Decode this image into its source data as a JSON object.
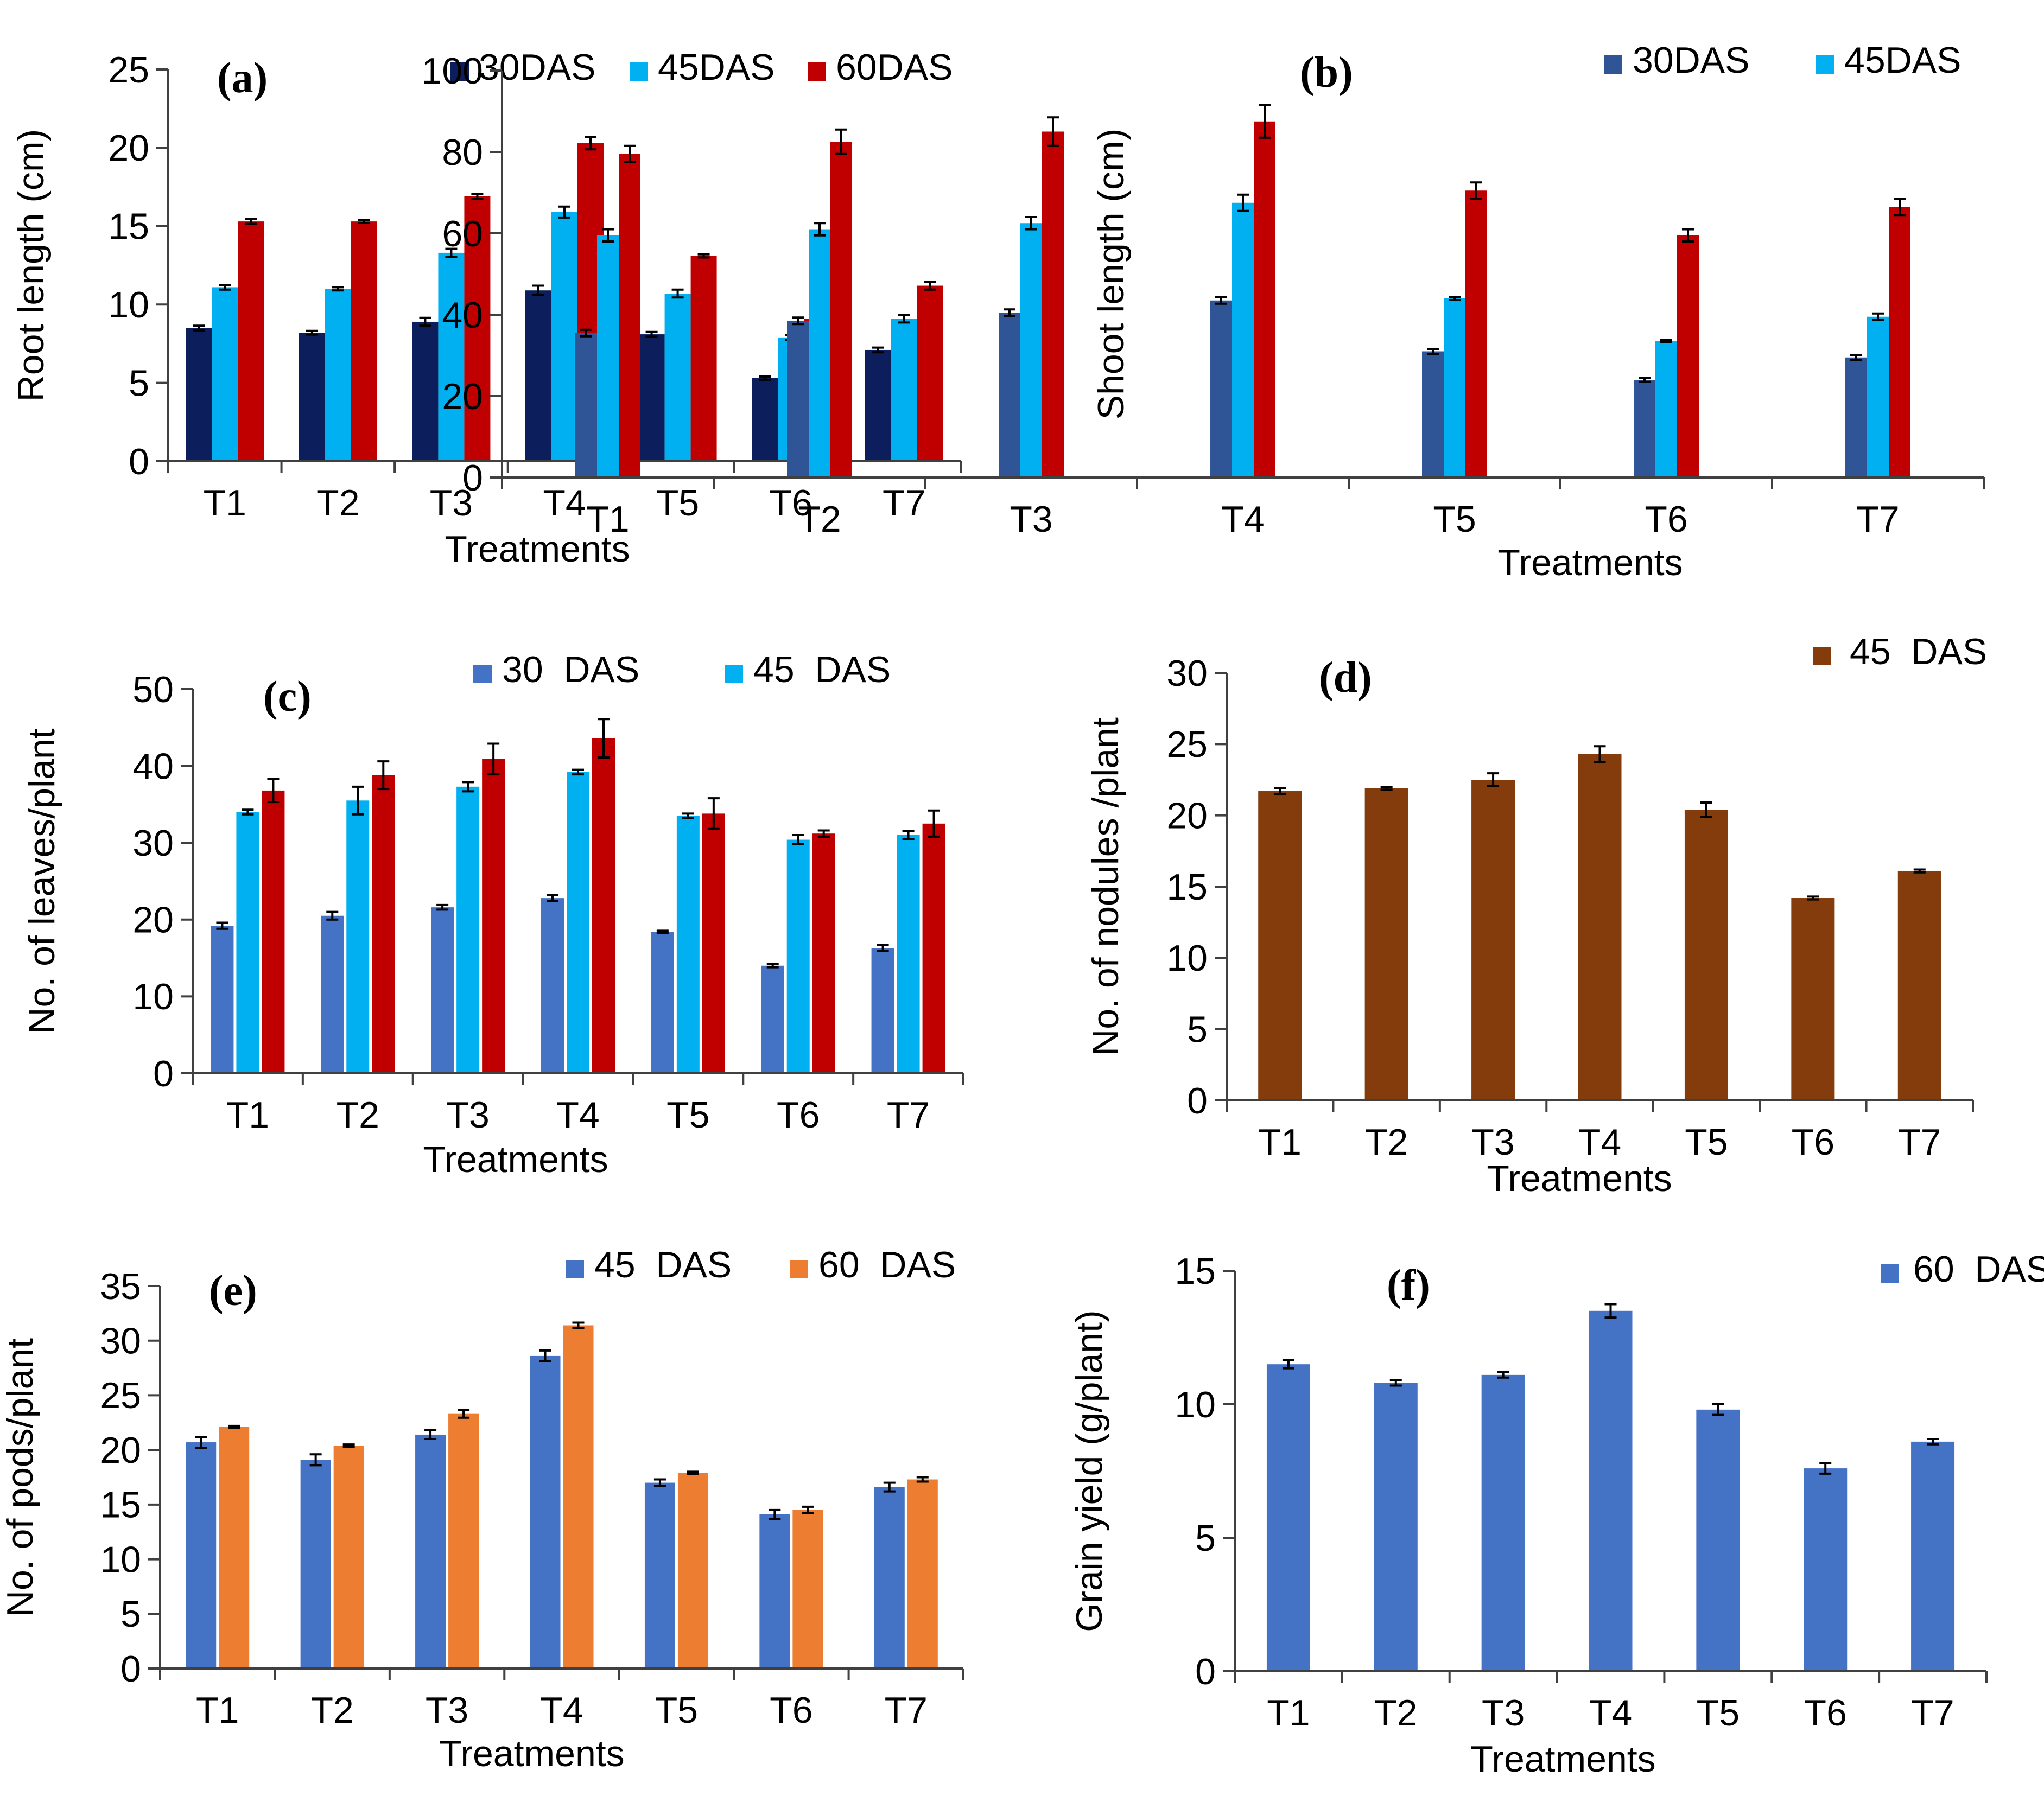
{
  "colors": {
    "c30a": "#0c1f5c",
    "c30b": "#2f5597",
    "c30c": "#4472c4",
    "c45": "#00b0f0",
    "c60": "#c00000",
    "brown": "#843c0c",
    "orange": "#ed7d31",
    "blue": "#4472c4"
  },
  "chart_data": [
    {
      "id": "a",
      "type": "bar",
      "panel_label": "(a)",
      "xlabel": "Treatments",
      "ylabel": "Root length (cm)",
      "ylim": [
        0,
        25
      ],
      "yticks": [
        0,
        5,
        10,
        15,
        20,
        25
      ],
      "categories": [
        "T1",
        "T2",
        "T3",
        "T4",
        "T5",
        "T6",
        "T7"
      ],
      "series": [
        {
          "name": "30DAS",
          "legend": "30DAS",
          "color": "#0c1f5c",
          "values": [
            8.5,
            8.2,
            8.9,
            10.9,
            8.1,
            5.3,
            7.1
          ],
          "errors": [
            0.15,
            0.12,
            0.25,
            0.3,
            0.15,
            0.1,
            0.15
          ]
        },
        {
          "name": "45DAS",
          "legend": "45DAS",
          "color": "#00b0f0",
          "values": [
            11.1,
            11.0,
            13.3,
            15.9,
            10.7,
            7.9,
            9.1
          ],
          "errors": [
            0.15,
            0.1,
            0.25,
            0.35,
            0.25,
            0.15,
            0.25
          ]
        },
        {
          "name": "60DAS",
          "legend": "60DAS",
          "color": "#c00000",
          "values": [
            15.3,
            15.3,
            16.9,
            20.3,
            13.1,
            9.1,
            11.2
          ],
          "errors": [
            0.15,
            0.1,
            0.15,
            0.4,
            0.1,
            0.25,
            0.25
          ]
        }
      ]
    },
    {
      "id": "b",
      "type": "bar",
      "panel_label": "(b)",
      "xlabel": "Treatments",
      "ylabel": "Shoot length (cm)",
      "ylim": [
        0,
        100
      ],
      "yticks": [
        0,
        20,
        40,
        60,
        80,
        100
      ],
      "categories": [
        "T1",
        "T2",
        "T3",
        "T4",
        "T5",
        "T6",
        "T7"
      ],
      "series": [
        {
          "name": "30DAS",
          "legend": "30DAS",
          "color": "#2f5597",
          "values": [
            35.5,
            38.5,
            40.5,
            43.5,
            31.0,
            24.0,
            29.5
          ],
          "errors": [
            0.8,
            0.8,
            0.8,
            0.8,
            0.6,
            0.5,
            0.6
          ]
        },
        {
          "name": "45DAS",
          "legend": "45DAS",
          "color": "#00b0f0",
          "values": [
            59.5,
            61.0,
            62.5,
            67.5,
            44.0,
            33.5,
            39.5
          ],
          "errors": [
            1.5,
            1.5,
            1.5,
            2.0,
            0.4,
            0.3,
            0.8
          ]
        },
        {
          "name": "60DAS",
          "legend": null,
          "color": "#c00000",
          "values": [
            79.5,
            82.5,
            85.0,
            87.5,
            70.5,
            59.5,
            66.5
          ],
          "errors": [
            2.0,
            3.0,
            3.5,
            4.0,
            2.0,
            1.5,
            2.0
          ]
        }
      ]
    },
    {
      "id": "c",
      "type": "bar",
      "panel_label": "(c)",
      "xlabel": "Treatments",
      "ylabel": "No. of leaves/plant",
      "ylim": [
        0,
        50
      ],
      "yticks": [
        0,
        10,
        20,
        30,
        40,
        50
      ],
      "categories": [
        "T1",
        "T2",
        "T3",
        "T4",
        "T5",
        "T6",
        "T7"
      ],
      "series": [
        {
          "name": "30 DAS",
          "legend": "30  DAS",
          "color": "#4472c4",
          "values": [
            19.2,
            20.5,
            21.6,
            22.8,
            18.4,
            14.0,
            16.3
          ],
          "errors": [
            0.4,
            0.5,
            0.3,
            0.4,
            0.15,
            0.2,
            0.4
          ]
        },
        {
          "name": "45 DAS",
          "legend": "45  DAS",
          "color": "#00b0f0",
          "values": [
            34.0,
            35.5,
            37.3,
            39.2,
            33.5,
            30.4,
            31.0
          ],
          "errors": [
            0.3,
            1.8,
            0.6,
            0.3,
            0.3,
            0.6,
            0.5
          ]
        },
        {
          "name": "60 DAS",
          "legend": null,
          "color": "#c00000",
          "values": [
            36.8,
            38.8,
            40.9,
            43.6,
            33.8,
            31.2,
            32.5
          ],
          "errors": [
            1.5,
            1.8,
            2.0,
            2.5,
            2.0,
            0.4,
            1.7
          ]
        }
      ]
    },
    {
      "id": "d",
      "type": "bar",
      "panel_label": "(d)",
      "xlabel": "Treatments",
      "ylabel": "No. of nodules /plant",
      "ylim": [
        0,
        30
      ],
      "yticks": [
        0,
        5,
        10,
        15,
        20,
        25,
        30
      ],
      "categories": [
        "T1",
        "T2",
        "T3",
        "T4",
        "T5",
        "T6",
        "T7"
      ],
      "series": [
        {
          "name": "45 DAS",
          "legend": "45  DAS",
          "color": "#843c0c",
          "values": [
            21.7,
            21.9,
            22.5,
            24.3,
            20.4,
            14.2,
            16.1
          ],
          "errors": [
            0.2,
            0.1,
            0.45,
            0.55,
            0.5,
            0.1,
            0.1
          ]
        }
      ]
    },
    {
      "id": "e",
      "type": "bar",
      "panel_label": "(e)",
      "xlabel": "Treatments",
      "ylabel": "No. of pods/plant",
      "ylim": [
        0,
        35
      ],
      "yticks": [
        0,
        5,
        10,
        15,
        20,
        25,
        30,
        35
      ],
      "categories": [
        "T1",
        "T2",
        "T3",
        "T4",
        "T5",
        "T6",
        "T7"
      ],
      "series": [
        {
          "name": "45 DAS",
          "legend": "45  DAS",
          "color": "#4472c4",
          "values": [
            20.7,
            19.1,
            21.4,
            28.6,
            17.0,
            14.1,
            16.6
          ],
          "errors": [
            0.5,
            0.5,
            0.4,
            0.5,
            0.3,
            0.4,
            0.4
          ]
        },
        {
          "name": "60 DAS",
          "legend": "60  DAS",
          "color": "#ed7d31",
          "values": [
            22.1,
            20.4,
            23.3,
            31.4,
            17.9,
            14.5,
            17.3
          ],
          "errors": [
            0.1,
            0.1,
            0.35,
            0.25,
            0.1,
            0.3,
            0.2
          ]
        }
      ]
    },
    {
      "id": "f",
      "type": "bar",
      "panel_label": "(f)",
      "xlabel": "Treatments",
      "ylabel": "Grain yield (g/plant)",
      "ylim": [
        0,
        15
      ],
      "yticks": [
        0,
        5,
        10,
        15
      ],
      "categories": [
        "T1",
        "T2",
        "T3",
        "T4",
        "T5",
        "T6",
        "T7"
      ],
      "series": [
        {
          "name": "60 DAS",
          "legend": "60  DAS",
          "color": "#4472c4",
          "values": [
            11.5,
            10.8,
            11.1,
            13.5,
            9.8,
            7.6,
            8.6
          ],
          "errors": [
            0.15,
            0.1,
            0.1,
            0.25,
            0.2,
            0.2,
            0.1
          ]
        }
      ]
    }
  ]
}
